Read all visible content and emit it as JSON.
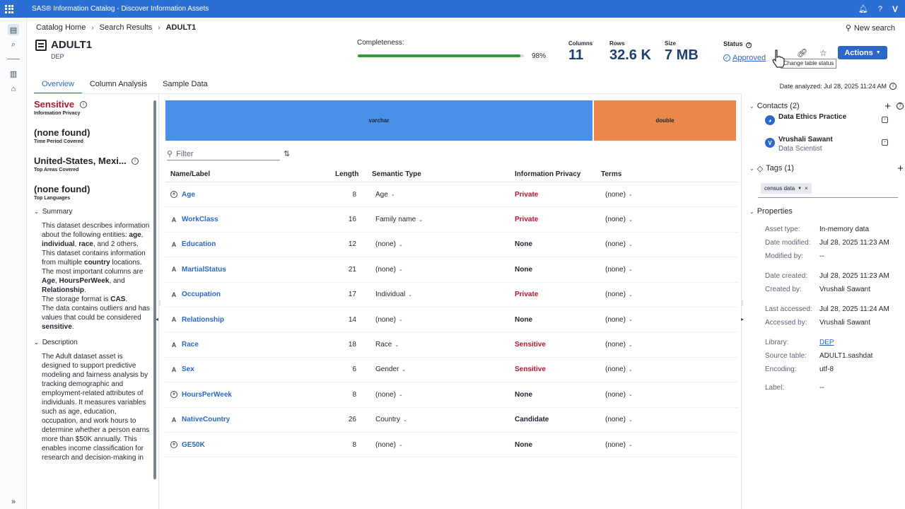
{
  "app": {
    "title": "SAS® Information Catalog - Discover Information Assets",
    "user_initial": "V"
  },
  "breadcrumb": [
    "Catalog Home",
    "Search Results",
    "ADULT1"
  ],
  "new_search_label": "New search",
  "asset": {
    "name": "ADULT1",
    "library": "DEP"
  },
  "completeness": {
    "label": "Completeness:",
    "value_percent": 98,
    "display": "98%"
  },
  "stats": [
    {
      "label": "Columns",
      "value": "11"
    },
    {
      "label": "Rows",
      "value": "32.6 K"
    },
    {
      "label": "Size",
      "value": "7 MB"
    }
  ],
  "status": {
    "label": "Status",
    "value": "Approved"
  },
  "actions_label": "Actions",
  "tooltip": "Change table status",
  "tabs": [
    "Overview",
    "Column Analysis",
    "Sample Data"
  ],
  "date_analyzed": "Date analyzed: Jul 28, 2025 11:24 AM",
  "left_panel": {
    "privacy": {
      "value": "Sensitive",
      "label": "Information Privacy"
    },
    "time_period": {
      "value": "(none found)",
      "label": "Time Period Covered"
    },
    "areas": {
      "value": "United-States, Mexi...",
      "label": "Top Areas Covered"
    },
    "languages": {
      "value": "(none found)",
      "label": "Top Languages"
    },
    "summary_title": "Summary",
    "summary": {
      "p1a": "This dataset describes information about the following entities: ",
      "e1": "age",
      "s1": ", ",
      "e2": "individual",
      "s2": ", ",
      "e3": "race",
      "p1b": ", and 2 others.",
      "p2a": "This dataset contains information from multiple ",
      "p2b": "country",
      "p2c": " locations.",
      "p3a": "The most important columns are ",
      "c1": "Age",
      "s3": ", ",
      "c2": "HoursPerWeek",
      "s4": ", and ",
      "c3": "Relationship",
      "p3b": ".",
      "p4a": "The storage format is ",
      "p4b": "CAS",
      "p4c": ".",
      "p5a": "The data contains outliers and has values that could be considered ",
      "p5b": "sensitive",
      "p5c": "."
    },
    "description_title": "Description",
    "description": "The Adult dataset asset is designed to support predictive modeling and fairness analysis by tracking demographic and employment-related attributes of individuals. It measures variables such as age, education, occupation, and work hours to determine whether a person earns more than $50K annually. This enables income classification for research and decision-making in"
  },
  "type_bar": [
    {
      "label": "varchar",
      "fraction": 0.75,
      "color": "#4a90e8"
    },
    {
      "label": "double",
      "fraction": 0.25,
      "color": "#e9884a"
    }
  ],
  "filter_placeholder": "Filter",
  "table": {
    "headers": [
      "Name/Label",
      "Length",
      "Semantic Type",
      "Information Privacy",
      "Terms"
    ],
    "rows": [
      {
        "name": "Age",
        "type": "numeric",
        "length": "8",
        "semantic": "Age",
        "privacy": "Private",
        "terms": "(none)"
      },
      {
        "name": "WorkClass",
        "type": "char",
        "length": "16",
        "semantic": "Family name",
        "privacy": "Private",
        "terms": "(none)"
      },
      {
        "name": "Education",
        "type": "char",
        "length": "12",
        "semantic": "(none)",
        "privacy": "None",
        "terms": "(none)"
      },
      {
        "name": "MartialStatus",
        "type": "char",
        "length": "21",
        "semantic": "(none)",
        "privacy": "None",
        "terms": "(none)"
      },
      {
        "name": "Occupation",
        "type": "char",
        "length": "17",
        "semantic": "Individual",
        "privacy": "Private",
        "terms": "(none)"
      },
      {
        "name": "Relationship",
        "type": "char",
        "length": "14",
        "semantic": "(none)",
        "privacy": "None",
        "terms": "(none)"
      },
      {
        "name": "Race",
        "type": "char",
        "length": "18",
        "semantic": "Race",
        "privacy": "Sensitive",
        "terms": "(none)"
      },
      {
        "name": "Sex",
        "type": "char",
        "length": "6",
        "semantic": "Gender",
        "privacy": "Sensitive",
        "terms": "(none)"
      },
      {
        "name": "HoursPerWeek",
        "type": "numeric",
        "length": "8",
        "semantic": "(none)",
        "privacy": "None",
        "terms": "(none)"
      },
      {
        "name": "NativeCountry",
        "type": "char",
        "length": "26",
        "semantic": "Country",
        "privacy": "Candidate",
        "terms": "(none)"
      },
      {
        "name": "GE50K",
        "type": "numeric",
        "length": "8",
        "semantic": "(none)",
        "privacy": "None",
        "terms": "(none)"
      }
    ]
  },
  "right_panel": {
    "contacts_title": "Contacts (2)",
    "contacts": [
      {
        "name": "Data Ethics Practice",
        "role": "",
        "initial": ""
      },
      {
        "name": "Vrushali Sawant",
        "role": "Data Scientist",
        "initial": "V"
      }
    ],
    "tags_title": "Tags (1)",
    "tag": "census data",
    "properties_title": "Properties",
    "properties": [
      {
        "k": "Asset type:",
        "v": "In-memory data"
      },
      {
        "k": "Date modified:",
        "v": "Jul 28, 2025 11:23 AM"
      },
      {
        "k": "Modified by:",
        "v": "--"
      },
      {
        "k": "Date created:",
        "v": "Jul 28, 2025 11:23 AM"
      },
      {
        "k": "Created by:",
        "v": "Vrushali Sawant"
      },
      {
        "k": "Last accessed:",
        "v": "Jul 28, 2025 11:24 AM"
      },
      {
        "k": "Accessed by:",
        "v": "Vrushali Sawant"
      },
      {
        "k": "Library:",
        "v": "DEP"
      },
      {
        "k": "Source table:",
        "v": "ADULT1.sashdat"
      },
      {
        "k": "Encoding:",
        "v": "utf-8"
      },
      {
        "k": "Label:",
        "v": "--"
      }
    ]
  }
}
